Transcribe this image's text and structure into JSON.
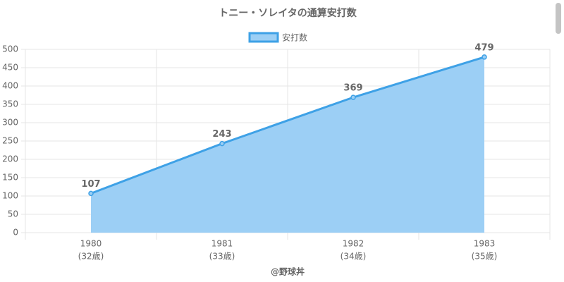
{
  "chart_data": {
    "type": "line",
    "title": "トニー・ソレイタの通算安打数",
    "categories": [
      "1980",
      "1981",
      "1982",
      "1983"
    ],
    "category_sublabels": [
      "(32歳)",
      "(33歳)",
      "(34歳)",
      "(35歳)"
    ],
    "series": [
      {
        "name": "安打数",
        "color": "#3ea1e6",
        "values": [
          107,
          243,
          369,
          479
        ]
      }
    ],
    "ylim": [
      0,
      500
    ],
    "yticks": [
      0,
      50,
      100,
      150,
      200,
      250,
      300,
      350,
      400,
      450,
      500
    ],
    "xlabel": "@野球丼",
    "grid": true,
    "legend": "top",
    "fill": true
  }
}
